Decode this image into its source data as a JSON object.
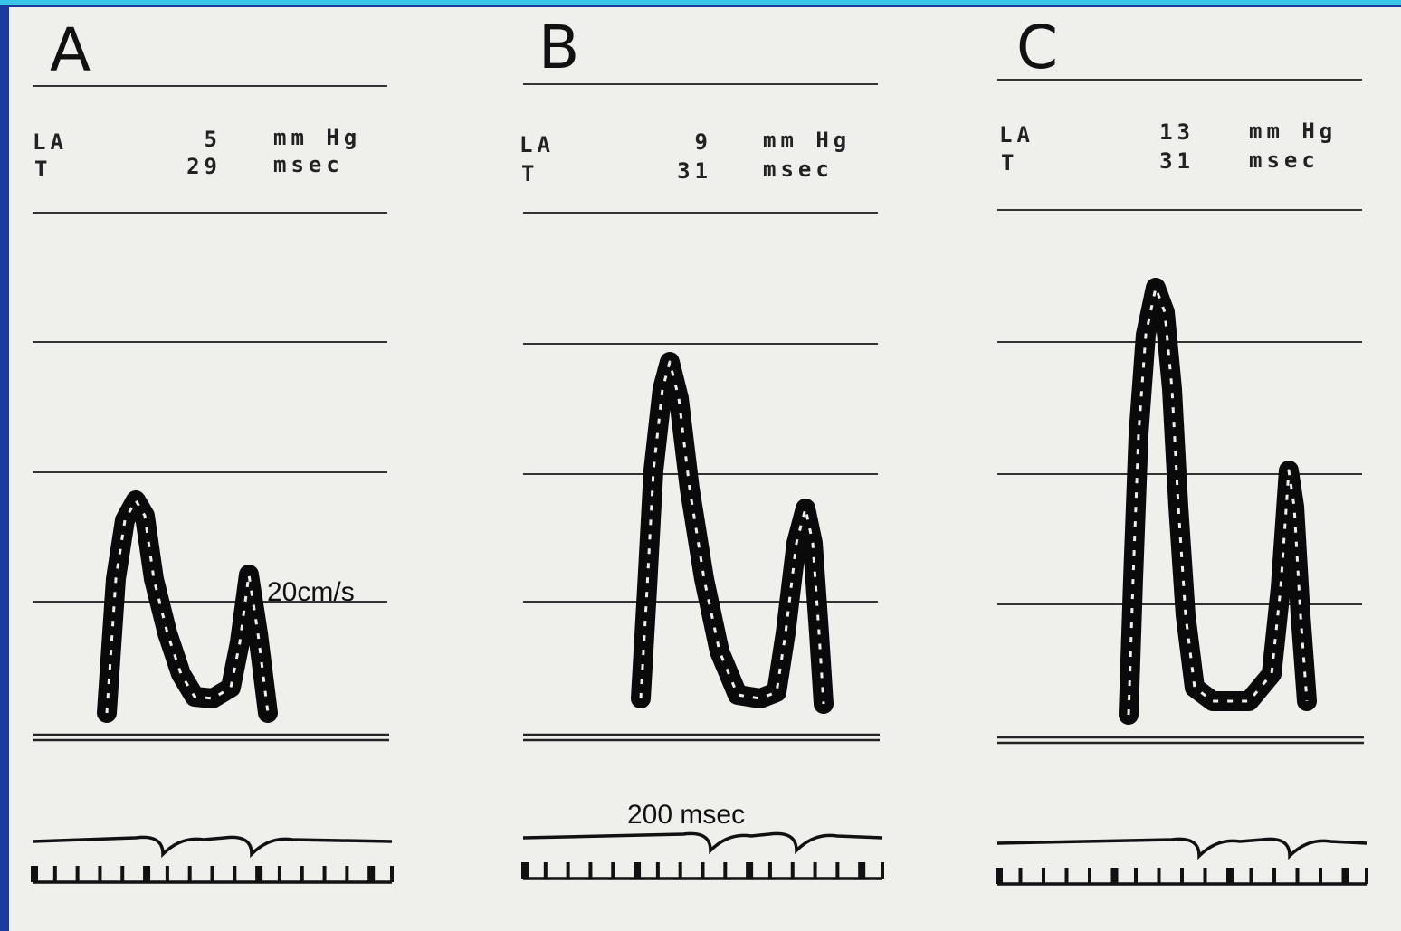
{
  "panels": [
    {
      "label": "A",
      "rows": [
        {
          "name": "LA",
          "value": "5",
          "unit": "mm Hg"
        },
        {
          "name": "T",
          "value": "29",
          "unit": "msec"
        }
      ],
      "annotation": "20cm/s"
    },
    {
      "label": "B",
      "rows": [
        {
          "name": "LA",
          "value": "9",
          "unit": "mm Hg"
        },
        {
          "name": "T",
          "value": "31",
          "unit": "msec"
        }
      ],
      "annotation": "200 msec"
    },
    {
      "label": "C",
      "rows": [
        {
          "name": "LA",
          "value": "13",
          "unit": "mm Hg"
        },
        {
          "name": "T",
          "value": "31",
          "unit": "msec"
        }
      ]
    }
  ]
}
